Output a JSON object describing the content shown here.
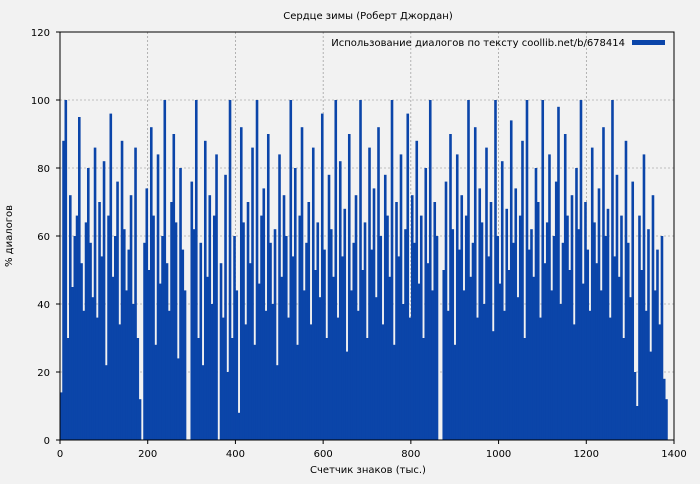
{
  "chart_data": {
    "type": "bar",
    "title": "Сердце зимы (Роберт Джордан)",
    "xlabel": "Счетчик знаков (тыс.)",
    "ylabel": "% диалогов",
    "xlim": [
      0,
      1400
    ],
    "ylim": [
      0,
      120
    ],
    "xticks": [
      0,
      200,
      400,
      600,
      800,
      1000,
      1200,
      1400
    ],
    "yticks": [
      0,
      20,
      40,
      60,
      80,
      100,
      120
    ],
    "grid": true,
    "legend_position": "top-right",
    "series": [
      {
        "name": "Использование диалогов по тексту coollib.net/b/678414",
        "color": "#0b45a9",
        "bar_width": 1,
        "x_range": [
          0,
          1385
        ],
        "values": [
          14,
          88,
          100,
          30,
          72,
          45,
          60,
          66,
          95,
          52,
          38,
          64,
          80,
          58,
          42,
          86,
          36,
          70,
          54,
          82,
          22,
          66,
          96,
          48,
          60,
          76,
          34,
          88,
          62,
          44,
          56,
          72,
          40,
          86,
          30,
          12,
          0,
          58,
          74,
          50,
          92,
          66,
          28,
          84,
          46,
          60,
          100,
          52,
          38,
          70,
          90,
          64,
          24,
          80,
          56,
          44,
          0,
          0,
          76,
          62,
          100,
          30,
          58,
          22,
          88,
          48,
          72,
          40,
          66,
          84,
          0,
          52,
          36,
          78,
          20,
          100,
          30,
          60,
          44,
          8,
          92,
          64,
          34,
          70,
          52,
          86,
          28,
          100,
          46,
          66,
          74,
          38,
          90,
          58,
          40,
          62,
          22,
          84,
          48,
          72,
          60,
          36,
          100,
          54,
          80,
          28,
          66,
          92,
          44,
          58,
          70,
          34,
          86,
          50,
          64,
          42,
          96,
          56,
          30,
          78,
          62,
          48,
          100,
          36,
          82,
          54,
          68,
          26,
          90,
          44,
          58,
          72,
          38,
          100,
          50,
          64,
          30,
          86,
          56,
          74,
          42,
          92,
          60,
          34,
          78,
          66,
          48,
          100,
          28,
          70,
          54,
          84,
          40,
          62,
          96,
          36,
          72,
          58,
          88,
          46,
          66,
          30,
          80,
          52,
          100,
          44,
          70,
          60,
          0,
          0,
          50,
          76,
          38,
          90,
          62,
          28,
          84,
          56,
          72,
          44,
          66,
          100,
          48,
          58,
          92,
          36,
          74,
          64,
          40,
          86,
          54,
          70,
          32,
          100,
          60,
          46,
          82,
          38,
          68,
          50,
          94,
          58,
          74,
          42,
          66,
          88,
          30,
          100,
          56,
          62,
          48,
          80,
          70,
          36,
          100,
          52,
          64,
          84,
          44,
          60,
          76,
          98,
          40,
          58,
          90,
          66,
          50,
          72,
          34,
          80,
          62,
          100,
          46,
          70,
          56,
          38,
          86,
          64,
          52,
          74,
          44,
          92,
          60,
          68,
          36,
          100,
          54,
          78,
          48,
          66,
          30,
          88,
          58,
          42,
          76,
          20,
          10,
          66,
          50,
          84,
          38,
          62,
          26,
          72,
          44,
          56,
          34,
          60,
          18,
          12
        ]
      }
    ]
  }
}
